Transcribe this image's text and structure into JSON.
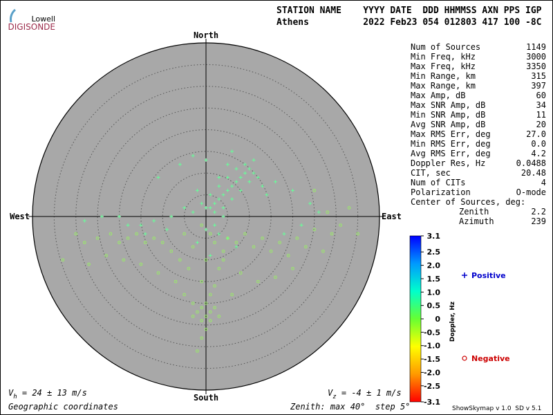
{
  "logo": {
    "top": "Lowell",
    "bottom": "DIGISONDE"
  },
  "header": {
    "labels": "STATION NAME    YYYY DATE  DDD HHMMSS AXN PPS IGP",
    "values": "Athens          2022 Feb23 054 012803 417 100 -8C"
  },
  "stats": [
    {
      "label": "Num of Sources",
      "value": "1149"
    },
    {
      "label": "Min Freq, kHz",
      "value": "3000"
    },
    {
      "label": "Max Freq, kHz",
      "value": "3350"
    },
    {
      "label": "Min Range, km",
      "value": "315"
    },
    {
      "label": "Max Range, km",
      "value": "397"
    },
    {
      "label": "Max Amp, dB",
      "value": "60"
    },
    {
      "label": "Max SNR Amp, dB",
      "value": "34"
    },
    {
      "label": "Min SNR Amp, dB",
      "value": "11"
    },
    {
      "label": "Avg SNR Amp, dB",
      "value": "20"
    },
    {
      "label": "Max RMS Err, deg",
      "value": "27.0"
    },
    {
      "label": "Min RMS Err, deg",
      "value": "0.0"
    },
    {
      "label": "Avg RMS Err, deg",
      "value": "4.2"
    },
    {
      "label": "Doppler Res, Hz",
      "value": "0.0488"
    },
    {
      "label": "CIT, sec",
      "value": "20.48"
    },
    {
      "label": "Num of CITs",
      "value": "4"
    },
    {
      "label": "Polarization",
      "value": "O-mode"
    },
    {
      "label": "Center of Sources, deg:"
    },
    {
      "label": "Zenith",
      "value": "2.2"
    },
    {
      "label": "Azimuth",
      "value": "239"
    }
  ],
  "footer": {
    "vh": {
      "symbol": "V",
      "sub": "h",
      "text": " = 24 ± 13 m/s"
    },
    "vz": {
      "symbol": "V",
      "sub": "z",
      "text": " = -4 ± 1 m/s"
    },
    "coords": "Geographic coordinates",
    "zenith": "Zenith: max 40°  step 5°",
    "version": "ShowSkymap v 1.0  SD v 5.1"
  },
  "chart_data": {
    "type": "skymap",
    "compass": {
      "north": "North",
      "south": "South",
      "east": "East",
      "west": "West"
    },
    "rlim": [
      0,
      40
    ],
    "rticks": [
      5,
      10,
      15,
      20,
      25,
      30,
      35
    ],
    "xlim": [
      -40,
      40
    ],
    "ylim": [
      -40,
      40
    ],
    "grid": true,
    "series": [
      {
        "name": "Positive",
        "marker": "plus",
        "color": "#66ff99",
        "legend_color": "#0000cc",
        "x": [
          2,
          3,
          1,
          4,
          5,
          6,
          7,
          8,
          9,
          10,
          3,
          5,
          7,
          9,
          11,
          12,
          6,
          8,
          10,
          4,
          2,
          0,
          1,
          3,
          5,
          -1,
          -2,
          13,
          14,
          2,
          0,
          3,
          5,
          -3,
          -5,
          -8,
          -12,
          -15,
          -18,
          -20,
          -24,
          -28,
          -11,
          -6,
          -3,
          0,
          6,
          11,
          16,
          20,
          24,
          26,
          22,
          18,
          7,
          1,
          -2,
          -9,
          -14,
          4
        ],
        "values": [
          3,
          4,
          2,
          5,
          6,
          7,
          8,
          9,
          10,
          11,
          7,
          9,
          11,
          12,
          10,
          9,
          4,
          6,
          8,
          2,
          1,
          2,
          5,
          9,
          12,
          3,
          6,
          7,
          5,
          -2,
          -3,
          -4,
          -5,
          1,
          2,
          0,
          -1,
          -2,
          -2,
          0,
          0,
          -1,
          9,
          12,
          14,
          13,
          15,
          13,
          8,
          6,
          3,
          1,
          -2,
          -4,
          -7,
          -9,
          -6,
          -3,
          -4,
          0
        ]
      },
      {
        "name": "Negative",
        "marker": "circle",
        "color": "#99ee66",
        "legend_color": "#cc0000",
        "x": [
          0,
          -1,
          1,
          0,
          -2,
          2,
          -1,
          1,
          3,
          -3,
          0,
          -1,
          -2,
          1,
          2,
          -1,
          3,
          4,
          -4,
          -6,
          -8,
          -10,
          -12,
          -14,
          -16,
          -18,
          -20,
          -22,
          -25,
          -28,
          -30,
          -33,
          -27,
          -23,
          -19,
          -15,
          -11,
          -7,
          -5,
          -3,
          5,
          7,
          9,
          11,
          13,
          15,
          17,
          19,
          21,
          23,
          25,
          27,
          29,
          31,
          35,
          33,
          28,
          25,
          20,
          16,
          12,
          8,
          4,
          1,
          -1,
          2,
          -3,
          -5,
          0,
          6
        ],
        "values": [
          -20,
          -21,
          -22,
          -23,
          -22,
          -21,
          -24,
          -24,
          -23,
          -23,
          -26,
          -28,
          -31,
          -18,
          -16,
          -15,
          -12,
          -10,
          -12,
          -10,
          -8,
          -6,
          -5,
          -6,
          -4,
          -5,
          -6,
          -4,
          -5,
          -6,
          -4,
          -10,
          -11,
          -9,
          -10,
          -11,
          -13,
          -15,
          -18,
          -20,
          -5,
          -6,
          -4,
          -7,
          -5,
          -8,
          -6,
          -9,
          -5,
          -7,
          -3,
          -8,
          -4,
          -2,
          -4,
          2,
          1,
          6,
          -12,
          -14,
          -15,
          -13,
          -8,
          -4,
          -2,
          -6,
          -7,
          -4,
          -10,
          -18
        ]
      }
    ],
    "colorbar": {
      "label": "Doppler, Hz",
      "lim": [
        -3.1,
        3.1
      ],
      "colors": [
        "#ff0000",
        "#ff9900",
        "#ffff00",
        "#66ff33",
        "#00ffcc",
        "#0099ff",
        "#0000ff"
      ],
      "ticks": [
        3.1,
        2.5,
        {
          "value": 2.0,
          "label": "2.0"
        },
        1.5,
        {
          "value": 1.0,
          "label": "1.0"
        },
        0.5,
        0,
        -0.5,
        {
          "value": -1.0,
          "label": "-1.0"
        },
        -1.5,
        {
          "value": -2.0,
          "label": "-2.0"
        },
        -2.5,
        -3.1
      ]
    }
  }
}
